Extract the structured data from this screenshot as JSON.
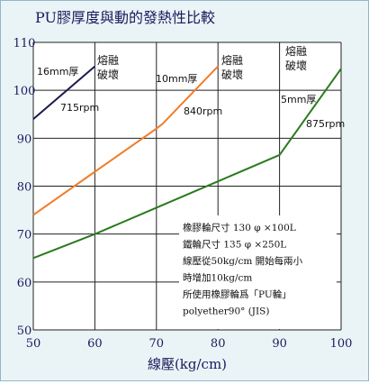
{
  "chart_data": {
    "type": "line",
    "title": "PU膠厚度與動的發熱性比較",
    "xlabel": "線壓(kg/cm)",
    "ylabel": "",
    "xlim": [
      50,
      100
    ],
    "ylim": [
      50,
      110
    ],
    "xticks": [
      "50",
      "60",
      "70",
      "80",
      "90",
      "100"
    ],
    "yticks": [
      "50",
      "60",
      "70",
      "80",
      "90",
      "100",
      "110"
    ],
    "grid": true,
    "series": [
      {
        "name": "16mm厚",
        "color": "#1c1a4e",
        "points": [
          [
            50,
            94
          ],
          [
            60,
            105
          ]
        ],
        "rpm_label": "715rpm",
        "end_label": ""
      },
      {
        "name": "10mm厚",
        "color": "#f07d28",
        "points": [
          [
            50,
            74
          ],
          [
            60,
            83
          ],
          [
            70,
            92
          ],
          [
            71,
            93
          ],
          [
            80,
            105
          ]
        ],
        "rpm_label": "840rpm",
        "end_label": "熔融\n破壞"
      },
      {
        "name": "5mm厚",
        "color": "#2a7a1e",
        "points": [
          [
            50,
            65
          ],
          [
            60,
            70
          ],
          [
            70,
            75.5
          ],
          [
            80,
            81
          ],
          [
            90,
            86.5
          ],
          [
            100,
            104.5
          ]
        ],
        "rpm_label": "875rpm",
        "end_label": "熔融\n破壞"
      }
    ],
    "top_label": "熔融\n破壞",
    "notes": [
      "橡膠輪尺寸  130 φ ×100L",
      "鐵輪尺寸   135 φ ×250L",
      "線壓從50kg/cm 開始每兩小",
      "時增加10kg/cm",
      "所使用橡膠輪爲「PU輪」",
      "polyether90° (JIS)"
    ]
  }
}
